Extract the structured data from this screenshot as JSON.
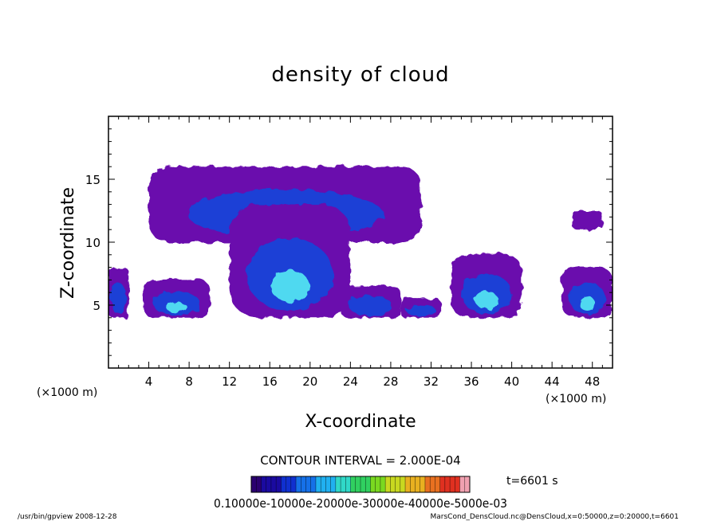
{
  "chart_data": {
    "type": "heatmap",
    "title": "density of cloud",
    "xlabel": "X-coordinate",
    "ylabel": "Z-coordinate",
    "x_unit": "(×1000 m)",
    "y_unit": "(×1000 m)",
    "xlim": [
      0,
      50
    ],
    "ylim": [
      0,
      20
    ],
    "x_ticks": [
      4,
      8,
      12,
      16,
      20,
      24,
      28,
      32,
      36,
      40,
      44,
      48
    ],
    "y_ticks": [
      5,
      10,
      15
    ],
    "contour_interval": "CONTOUR INTERVAL = 2.000E-04",
    "time_label": "t=6601 s",
    "colorbar_labels_text": "0.10000e-10000e-20000e-30000e-40000e-5000e-03",
    "colorbar_levels": [
      0.0001,
      0.0002,
      0.0003,
      0.0004,
      0.0005
    ],
    "cloud_regions": [
      {
        "x_range": [
          0,
          2
        ],
        "z_range": [
          4,
          8
        ],
        "peak": 0.0002
      },
      {
        "x_range": [
          3.5,
          10
        ],
        "z_range": [
          4,
          7
        ],
        "peak": 0.00035
      },
      {
        "x_range": [
          4,
          31
        ],
        "z_range": [
          10,
          16
        ],
        "peak": 0.00025
      },
      {
        "x_range": [
          12,
          24
        ],
        "z_range": [
          4,
          13
        ],
        "peak": 0.0004
      },
      {
        "x_range": [
          23,
          29
        ],
        "z_range": [
          4,
          6.5
        ],
        "peak": 0.00015
      },
      {
        "x_range": [
          29,
          33
        ],
        "z_range": [
          4,
          5.5
        ],
        "peak": 0.00015
      },
      {
        "x_range": [
          34,
          41
        ],
        "z_range": [
          4,
          9
        ],
        "peak": 0.00035
      },
      {
        "x_range": [
          46,
          49
        ],
        "z_range": [
          11,
          12.5
        ],
        "peak": 0.0001
      },
      {
        "x_range": [
          45,
          50
        ],
        "z_range": [
          4,
          8
        ],
        "peak": 0.00035
      }
    ]
  },
  "footer": {
    "left": "/usr/bin/gpview   2008-12-28",
    "right": "MarsCond_DensCloud.nc@DensCloud,x=0:50000,z=0:20000,t=6601"
  },
  "colors": {
    "low": "#6a0dad",
    "mid": "#1a3fd6",
    "high": "#4fd9f0",
    "axis": "#000000"
  }
}
